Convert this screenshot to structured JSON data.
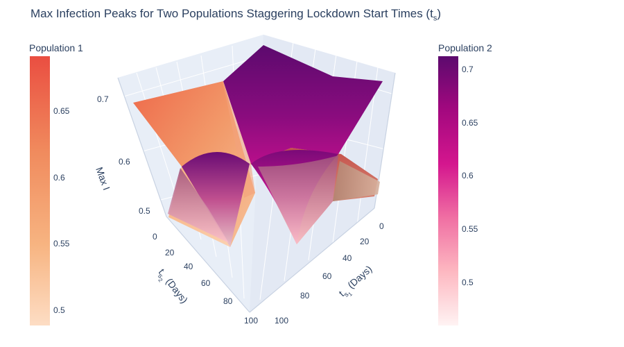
{
  "chart_data": {
    "type": "surface",
    "title_main": "Max Infection Peaks for Two Populations Staggering Lockdown Start Times (t",
    "title_sub": "s",
    "title_close": ")",
    "axes": {
      "x": {
        "label": "t",
        "label_sub": "s",
        "label_sub2": "1",
        "label_rest": " (Days)",
        "range": [
          0,
          100
        ],
        "ticks": [
          "0",
          "20",
          "40",
          "60",
          "80",
          "100"
        ]
      },
      "y": {
        "label": "t",
        "label_sub": "s",
        "label_sub2": "2",
        "label_rest": " (Days)",
        "range": [
          0,
          100
        ],
        "ticks": [
          "0",
          "20",
          "40",
          "60",
          "80",
          "100"
        ]
      },
      "z": {
        "label": "Max I",
        "range": [
          0.45,
          0.72
        ],
        "ticks": [
          "0.5",
          "0.6",
          "0.7"
        ]
      }
    },
    "series": [
      {
        "name": "Population 1",
        "colorscale": [
          "#fdddc4",
          "#f7b481",
          "#f08a5d",
          "#ea4e41"
        ],
        "cmin": 0.48,
        "cmax": 0.69,
        "surface_description": "max infection peak over (t_s1, t_s2) grid"
      },
      {
        "name": "Population 2",
        "colorscale": [
          "#fff3f3",
          "#fdb8c1",
          "#f06fa3",
          "#d4168e",
          "#5c0a6e"
        ],
        "cmin": 0.45,
        "cmax": 0.715,
        "surface_description": "max infection peak over (t_s1, t_s2) grid"
      }
    ],
    "colorbars": [
      {
        "title": "Population 1",
        "ticks": [
          "0.65",
          "0.6",
          "0.55",
          "0.5"
        ]
      },
      {
        "title": "Population 2",
        "ticks": [
          "0.7",
          "0.65",
          "0.6",
          "0.55",
          "0.5"
        ]
      }
    ],
    "grid": true,
    "legend_placement": "colorbars left and right"
  }
}
